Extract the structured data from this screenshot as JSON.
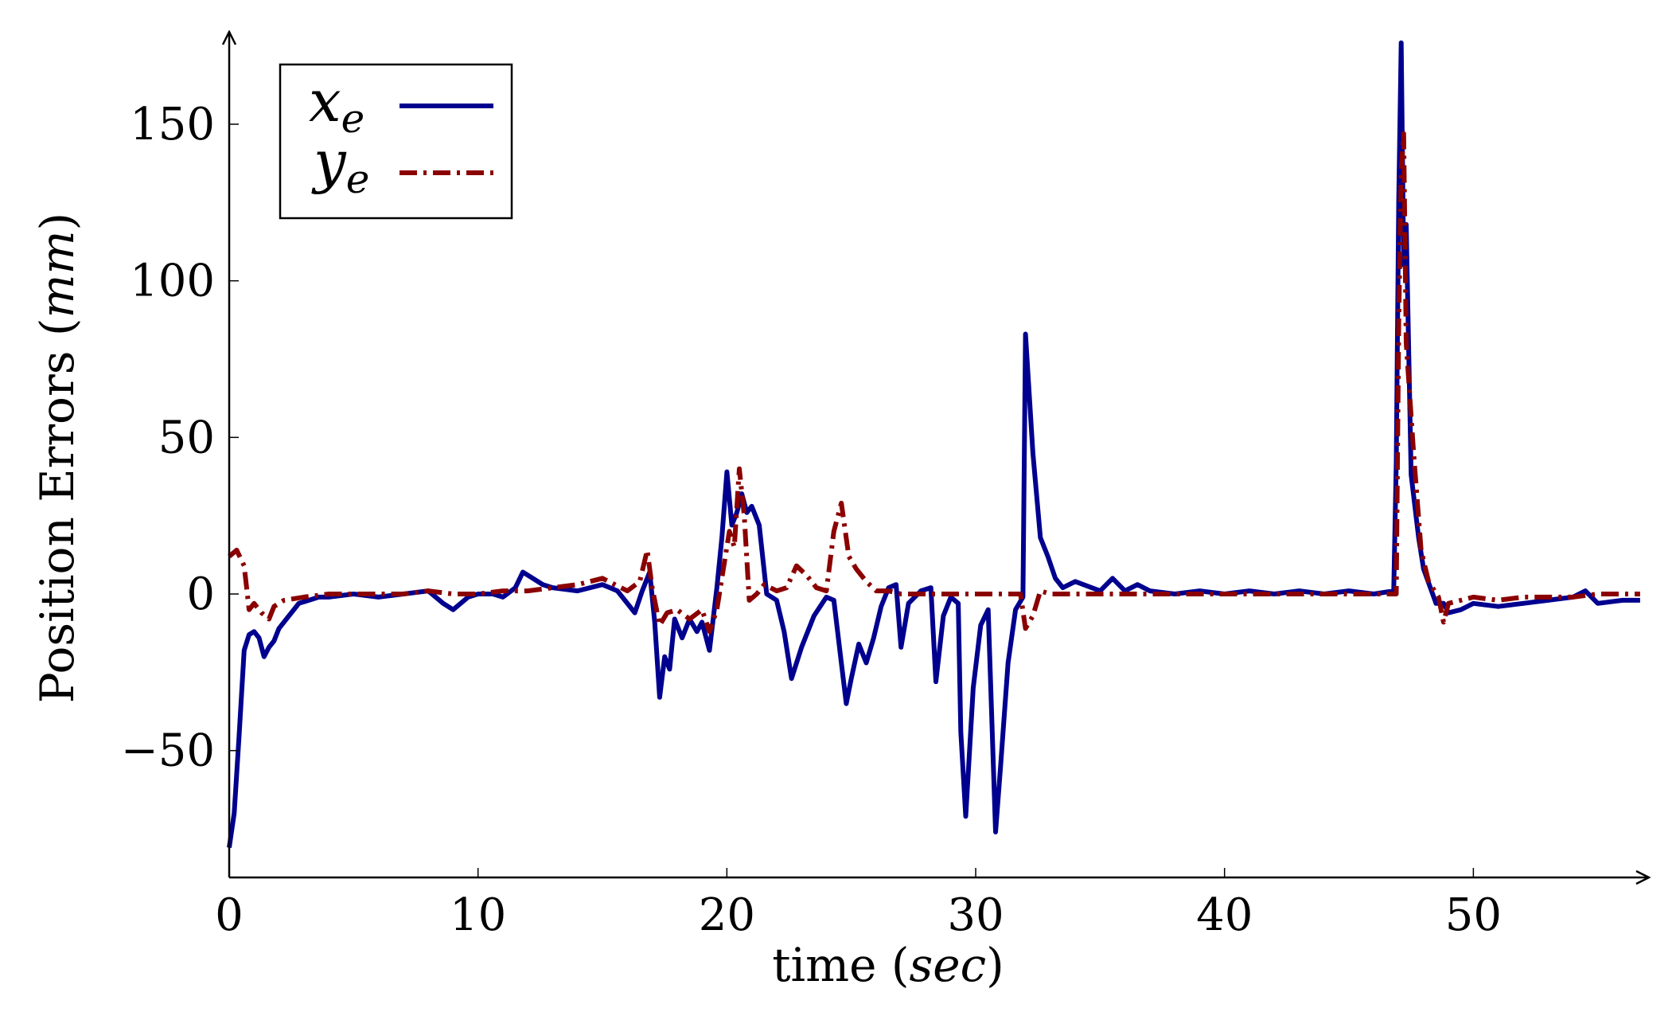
{
  "chart_data": {
    "type": "line",
    "title": "",
    "xlabel": "time",
    "xlabel_unit": "sec",
    "ylabel": "Position Errors",
    "ylabel_unit": "mm",
    "xlim": [
      0,
      56.8
    ],
    "ylim": [
      -90,
      180
    ],
    "x_ticks": [
      0,
      10,
      20,
      30,
      40,
      50
    ],
    "y_ticks": [
      -50,
      0,
      50,
      100,
      150
    ],
    "y_tick_labels": [
      "−50",
      "0",
      "50",
      "100",
      "150"
    ],
    "grid": false,
    "legend_position": "top-left",
    "series": [
      {
        "name": "x",
        "subscript": "e",
        "color": "#00008f",
        "style": "solid",
        "points": [
          [
            0,
            -81
          ],
          [
            0.2,
            -70
          ],
          [
            0.4,
            -45
          ],
          [
            0.6,
            -18
          ],
          [
            0.8,
            -13
          ],
          [
            1.0,
            -12
          ],
          [
            1.2,
            -14
          ],
          [
            1.4,
            -20
          ],
          [
            1.6,
            -17
          ],
          [
            1.8,
            -15
          ],
          [
            2.0,
            -11
          ],
          [
            2.4,
            -7
          ],
          [
            2.8,
            -3
          ],
          [
            3.2,
            -2
          ],
          [
            3.6,
            -1
          ],
          [
            4.0,
            -1
          ],
          [
            5.0,
            0
          ],
          [
            6.0,
            -1
          ],
          [
            7.0,
            0
          ],
          [
            8.0,
            1
          ],
          [
            8.6,
            -3
          ],
          [
            9.0,
            -5
          ],
          [
            9.6,
            -1
          ],
          [
            10.0,
            0
          ],
          [
            10.6,
            0
          ],
          [
            11.0,
            -1
          ],
          [
            11.5,
            2
          ],
          [
            11.8,
            7
          ],
          [
            12.2,
            5
          ],
          [
            12.6,
            3
          ],
          [
            13.0,
            2
          ],
          [
            14.0,
            1
          ],
          [
            15.0,
            3
          ],
          [
            15.6,
            1
          ],
          [
            16.0,
            -3
          ],
          [
            16.3,
            -6
          ],
          [
            16.6,
            1
          ],
          [
            16.9,
            7
          ],
          [
            17.1,
            -9
          ],
          [
            17.3,
            -33
          ],
          [
            17.5,
            -20
          ],
          [
            17.7,
            -24
          ],
          [
            17.9,
            -8
          ],
          [
            18.2,
            -14
          ],
          [
            18.5,
            -8
          ],
          [
            18.8,
            -12
          ],
          [
            19.0,
            -9
          ],
          [
            19.3,
            -18
          ],
          [
            19.6,
            2
          ],
          [
            19.8,
            18
          ],
          [
            20.0,
            39
          ],
          [
            20.2,
            22
          ],
          [
            20.4,
            26
          ],
          [
            20.6,
            32
          ],
          [
            20.8,
            26
          ],
          [
            21.0,
            28
          ],
          [
            21.3,
            22
          ],
          [
            21.6,
            0
          ],
          [
            22.0,
            -2
          ],
          [
            22.3,
            -12
          ],
          [
            22.6,
            -27
          ],
          [
            23.0,
            -17
          ],
          [
            23.5,
            -7
          ],
          [
            24.0,
            -1
          ],
          [
            24.3,
            -2
          ],
          [
            24.6,
            -22
          ],
          [
            24.8,
            -35
          ],
          [
            25.0,
            -27
          ],
          [
            25.3,
            -16
          ],
          [
            25.6,
            -22
          ],
          [
            25.9,
            -14
          ],
          [
            26.2,
            -4
          ],
          [
            26.5,
            2
          ],
          [
            26.8,
            3
          ],
          [
            27.0,
            -17
          ],
          [
            27.3,
            -3
          ],
          [
            27.8,
            1
          ],
          [
            28.2,
            2
          ],
          [
            28.4,
            -28
          ],
          [
            28.7,
            -7
          ],
          [
            29.0,
            -1
          ],
          [
            29.3,
            -3
          ],
          [
            29.4,
            -44
          ],
          [
            29.6,
            -71
          ],
          [
            29.9,
            -30
          ],
          [
            30.2,
            -10
          ],
          [
            30.5,
            -5
          ],
          [
            30.8,
            -76
          ],
          [
            31.0,
            -55
          ],
          [
            31.3,
            -22
          ],
          [
            31.6,
            -5
          ],
          [
            31.9,
            -1
          ],
          [
            32.0,
            83
          ],
          [
            32.3,
            45
          ],
          [
            32.6,
            18
          ],
          [
            32.9,
            12
          ],
          [
            33.2,
            5
          ],
          [
            33.5,
            2
          ],
          [
            34.0,
            4
          ],
          [
            35.0,
            1
          ],
          [
            35.5,
            5
          ],
          [
            36.0,
            1
          ],
          [
            36.5,
            3
          ],
          [
            37.0,
            1
          ],
          [
            38.0,
            0
          ],
          [
            39.0,
            1
          ],
          [
            40.0,
            0
          ],
          [
            41.0,
            1
          ],
          [
            42.0,
            0
          ],
          [
            43.0,
            1
          ],
          [
            44.0,
            0
          ],
          [
            45.0,
            1
          ],
          [
            46.0,
            0
          ],
          [
            46.8,
            1
          ],
          [
            46.9,
            42
          ],
          [
            47.0,
            126
          ],
          [
            47.1,
            176
          ],
          [
            47.2,
            105
          ],
          [
            47.3,
            118
          ],
          [
            47.5,
            38
          ],
          [
            47.8,
            18
          ],
          [
            48.0,
            8
          ],
          [
            48.5,
            -3
          ],
          [
            48.8,
            -3
          ],
          [
            49.0,
            -6
          ],
          [
            49.5,
            -5
          ],
          [
            50.0,
            -3
          ],
          [
            51.0,
            -4
          ],
          [
            52.0,
            -3
          ],
          [
            53.0,
            -2
          ],
          [
            54.0,
            -1
          ],
          [
            54.5,
            1
          ],
          [
            55.0,
            -3
          ],
          [
            56.0,
            -2
          ],
          [
            56.7,
            -2
          ]
        ]
      },
      {
        "name": "y",
        "subscript": "e",
        "color": "#8b0000",
        "style": "dash-dot",
        "points": [
          [
            0,
            12
          ],
          [
            0.3,
            14
          ],
          [
            0.6,
            9
          ],
          [
            0.8,
            -5
          ],
          [
            1.0,
            -3
          ],
          [
            1.3,
            -6
          ],
          [
            1.6,
            -8
          ],
          [
            1.8,
            -4
          ],
          [
            2.2,
            -2
          ],
          [
            3.0,
            -1
          ],
          [
            4.0,
            0
          ],
          [
            5.0,
            0
          ],
          [
            6.0,
            0
          ],
          [
            7.0,
            0
          ],
          [
            8.0,
            1
          ],
          [
            9.0,
            0
          ],
          [
            10.0,
            0
          ],
          [
            11.0,
            1
          ],
          [
            12.0,
            1
          ],
          [
            13.0,
            2
          ],
          [
            14.0,
            3
          ],
          [
            14.5,
            4
          ],
          [
            15.0,
            5
          ],
          [
            15.5,
            3
          ],
          [
            16.0,
            1
          ],
          [
            16.5,
            4
          ],
          [
            16.8,
            14
          ],
          [
            17.0,
            2
          ],
          [
            17.3,
            -10
          ],
          [
            17.6,
            -6
          ],
          [
            18.0,
            -5
          ],
          [
            18.5,
            -8
          ],
          [
            19.0,
            -5
          ],
          [
            19.3,
            -12
          ],
          [
            19.6,
            -5
          ],
          [
            19.9,
            10
          ],
          [
            20.1,
            20
          ],
          [
            20.3,
            15
          ],
          [
            20.5,
            40
          ],
          [
            20.7,
            25
          ],
          [
            20.9,
            -2
          ],
          [
            21.2,
            0
          ],
          [
            21.5,
            3
          ],
          [
            22.0,
            1
          ],
          [
            22.4,
            2
          ],
          [
            22.8,
            9
          ],
          [
            23.2,
            6
          ],
          [
            23.6,
            2
          ],
          [
            24.0,
            1
          ],
          [
            24.3,
            20
          ],
          [
            24.6,
            29
          ],
          [
            24.9,
            12
          ],
          [
            25.2,
            8
          ],
          [
            25.6,
            4
          ],
          [
            26.0,
            1
          ],
          [
            26.5,
            1
          ],
          [
            27.0,
            0
          ],
          [
            28.0,
            0
          ],
          [
            29.0,
            0
          ],
          [
            30.0,
            0
          ],
          [
            31.0,
            0
          ],
          [
            31.8,
            0
          ],
          [
            32.0,
            -11
          ],
          [
            32.3,
            -7
          ],
          [
            32.6,
            1
          ],
          [
            33.0,
            0
          ],
          [
            34.0,
            0
          ],
          [
            40.0,
            0
          ],
          [
            46.0,
            0
          ],
          [
            46.9,
            0
          ],
          [
            47.0,
            87
          ],
          [
            47.1,
            135
          ],
          [
            47.2,
            147
          ],
          [
            47.3,
            80
          ],
          [
            47.6,
            45
          ],
          [
            47.9,
            14
          ],
          [
            48.2,
            4
          ],
          [
            48.6,
            -1
          ],
          [
            48.8,
            -9
          ],
          [
            49.0,
            -3
          ],
          [
            49.5,
            -2
          ],
          [
            50.0,
            -1
          ],
          [
            51.0,
            -2
          ],
          [
            52.0,
            -1
          ],
          [
            53.0,
            -1
          ],
          [
            54.0,
            -1
          ],
          [
            55.0,
            0
          ],
          [
            56.0,
            0
          ],
          [
            56.7,
            0
          ]
        ]
      }
    ]
  }
}
